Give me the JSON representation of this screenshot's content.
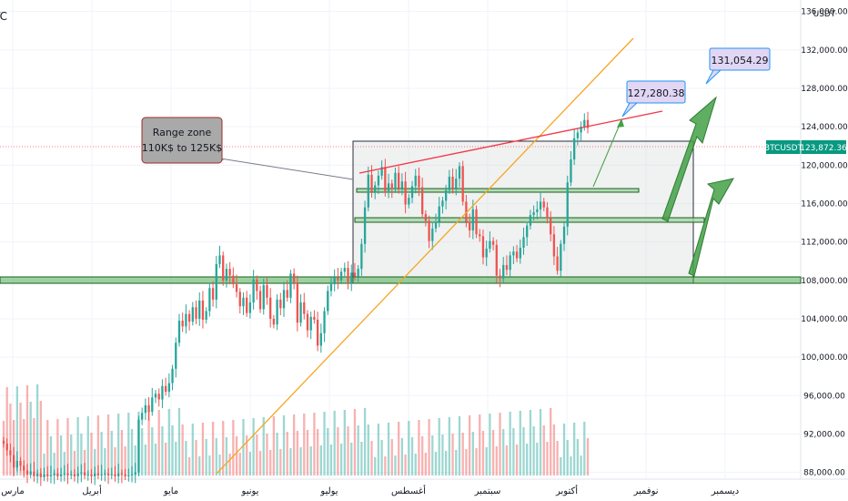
{
  "header": {
    "title": "BTC · جهد الوداع"
  },
  "axis": {
    "currency": "USDT"
  },
  "price_tag": {
    "symbol": "BTCUSDT",
    "value": "123,872.36"
  },
  "annotations": {
    "range_zone": {
      "line1": "Range zone",
      "line2": "110K$ to 125K$"
    },
    "target1": "127,280.38",
    "target2": "131,054.29"
  },
  "colors": {
    "bull": "#26a69a",
    "bear": "#ef5350",
    "support_band": "#4caf50",
    "trendline": "#f5a623",
    "resistance_line": "#f23645",
    "arrow": "#43a047",
    "tag_bg": "#089981",
    "callout_bg": "#e1d6f4",
    "callout_border": "#2196f3"
  },
  "chart_data": {
    "type": "candlestick",
    "y_axis": {
      "ticks": [
        "136,000.00",
        "132,000.00",
        "128,000.00",
        "124,000.00",
        "120,000.00",
        "116,000.00",
        "112,000.00",
        "108,000.00",
        "104,000.00",
        "100,000.00",
        "96,000.00",
        "92,000.00",
        "88,000.00"
      ],
      "ylim": [
        87300,
        137200
      ]
    },
    "x_axis": {
      "labels": [
        "مارس",
        "أبريل",
        "مايو",
        "يونيو",
        "يوليو",
        "أغسطس",
        "سبتمبر",
        "أكتوبر",
        "نوفمبر",
        "ديسمبر"
      ]
    },
    "last_price": 123872.36,
    "series_close": [
      91000,
      90300,
      89800,
      88500,
      89200,
      88700,
      88200,
      87800,
      88100,
      87600,
      87900,
      87500,
      87800,
      87600,
      87700,
      87900,
      87600,
      87800,
      87900,
      87700,
      87800,
      87600,
      87900,
      88000,
      87700,
      87800,
      87600,
      87900,
      87700,
      87800,
      87900,
      87700,
      87800,
      87600,
      87900,
      87800,
      87600,
      87700,
      87800,
      88000,
      93500,
      94200,
      95000,
      94300,
      95800,
      96200,
      95600,
      97000,
      96400,
      97300,
      98800,
      101500,
      103800,
      103200,
      104500,
      103700,
      105200,
      104000,
      105900,
      103900,
      104800,
      107200,
      106000,
      109700,
      110600,
      108000,
      109200,
      108500,
      107600,
      106800,
      105300,
      106200,
      104600,
      105700,
      108100,
      106900,
      105000,
      107500,
      106200,
      104000,
      103400,
      106000,
      105100,
      107000,
      106200,
      108700,
      107800,
      103600,
      105700,
      104500,
      102800,
      104200,
      103900,
      101200,
      102500,
      104800,
      106900,
      107600,
      108300,
      108000,
      108900,
      109300,
      107800,
      108800,
      108400,
      109200,
      111800,
      115600,
      119000,
      117200,
      117900,
      118900,
      119800,
      117300,
      118100,
      117500,
      119200,
      117600,
      118300,
      115900,
      116600,
      117800,
      118900,
      117700,
      114900,
      114200,
      112100,
      113400,
      114100,
      115700,
      116300,
      117400,
      118800,
      117600,
      118600,
      119900,
      116200,
      114100,
      113200,
      115400,
      112800,
      112600,
      110400,
      111300,
      112100,
      111700,
      108500,
      108200,
      109600,
      109100,
      110600,
      111000,
      110300,
      111400,
      112500,
      113700,
      114800,
      115100,
      115400,
      116200,
      115600,
      114500,
      112800,
      110500,
      109000,
      111800,
      113600,
      118200,
      120600,
      122800,
      123400,
      124000,
      124700,
      123872
    ],
    "volume_profile": "shown as teal/red bars along the bottom of the chart"
  }
}
